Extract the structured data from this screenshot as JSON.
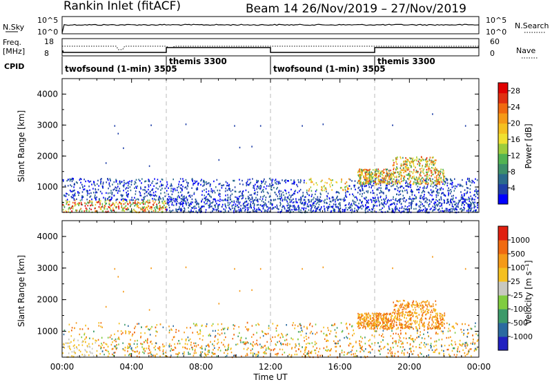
{
  "header": {
    "title": "Rankin Inlet (fitACF)",
    "beam_date": "Beam 14  26/Nov/2019 – 27/Nov/2019"
  },
  "summary": {
    "nsky_label": "N.Sky",
    "nsky_ticks": [
      "10^5",
      "10^0"
    ],
    "nsearch_label": "N.Search",
    "nsearch_ticks": [
      "10^5",
      "10^0"
    ],
    "freq_label": "Freq.",
    "freq_unit": "[MHz]",
    "freq_ticks": [
      "18",
      "8"
    ],
    "nave_label": "Nave",
    "nave_ticks": [
      "60",
      "0"
    ],
    "cpid_label": "CPID",
    "cpid_segments": [
      {
        "name": "twofsound (1-min) 3505",
        "start_h": 0,
        "end_h": 6
      },
      {
        "name": "themis 3300",
        "start_h": 6,
        "end_h": 12
      },
      {
        "name": "twofsound (1-min) 3505",
        "start_h": 12,
        "end_h": 18
      },
      {
        "name": "themis 3300",
        "start_h": 18,
        "end_h": 24
      }
    ]
  },
  "chart_data": [
    {
      "type": "heatmap",
      "title": "",
      "ylabel": "Slant Range [km]",
      "xlabel": "",
      "ylim": [
        180,
        4500
      ],
      "yticks": [
        "4000",
        "3000",
        "2000",
        "1000"
      ],
      "ytick_values": [
        4000,
        3000,
        2000,
        1000
      ],
      "xlim_hours": [
        0,
        24
      ],
      "colorbar": {
        "label": "Power [dB]",
        "ticks": [
          "28",
          "24",
          "20",
          "16",
          "12",
          "8",
          "4"
        ],
        "tick_values": [
          28,
          24,
          20,
          16,
          12,
          8,
          4
        ],
        "range": [
          0,
          30
        ],
        "colors": [
          "#0000ff",
          "#1f3fa8",
          "#2a6a8c",
          "#3c8f6a",
          "#52b352",
          "#9ccc3c",
          "#f0e030",
          "#f5c020",
          "#f59a18",
          "#f06a10",
          "#e03010",
          "#e00000"
        ]
      }
    },
    {
      "type": "heatmap",
      "title": "",
      "ylabel": "Slant Range [km]",
      "xlabel": "Time UT",
      "ylim": [
        180,
        4500
      ],
      "yticks": [
        "4000",
        "3000",
        "2000",
        "1000"
      ],
      "ytick_values": [
        4000,
        3000,
        2000,
        1000
      ],
      "xlim_hours": [
        0,
        24
      ],
      "xticks": [
        "00:00",
        "04:00",
        "08:00",
        "12:00",
        "16:00",
        "20:00",
        "00:00"
      ],
      "colorbar": {
        "label": "Velocity [m s⁻¹]",
        "ticks": [
          "1000",
          "500",
          "100",
          "25",
          "-25",
          "-100",
          "-500",
          "-1000"
        ],
        "tick_values": [
          1000,
          500,
          100,
          25,
          -25,
          -100,
          -500,
          -1000
        ],
        "colors": [
          "#2020c0",
          "#2a6aa0",
          "#3c9a6a",
          "#80cc40",
          "#c8c8c0",
          "#f5c020",
          "#f59a18",
          "#f06a10",
          "#e02010"
        ]
      }
    }
  ],
  "colors": {
    "grid_dash": "#bbbbbb",
    "axis": "#000000"
  }
}
